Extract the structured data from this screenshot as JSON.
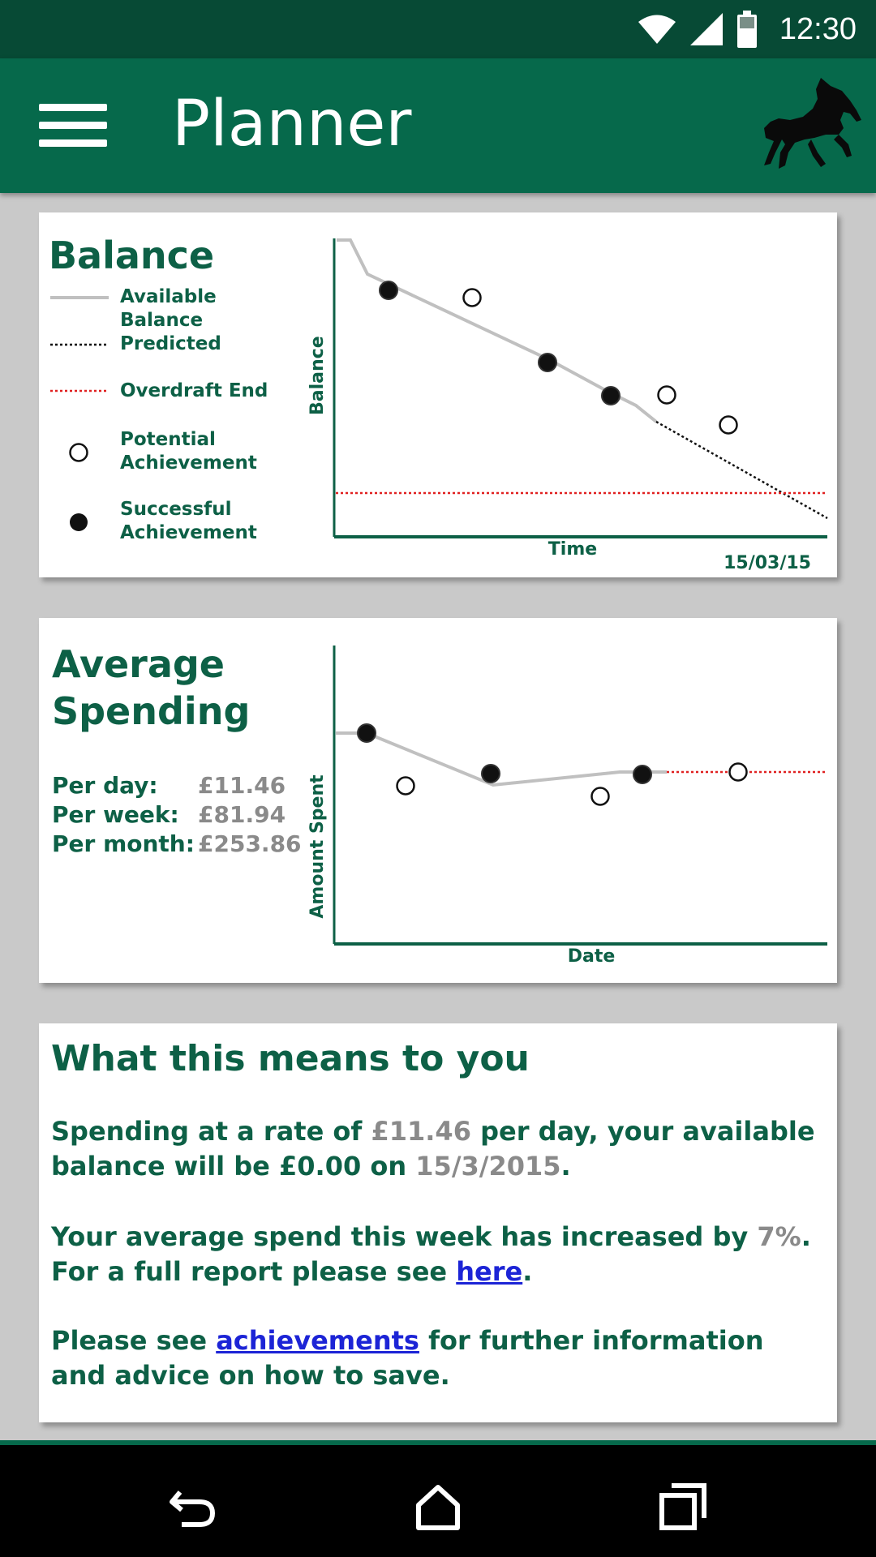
{
  "status_bar": {
    "time": "12:30",
    "icons": [
      "wifi-icon",
      "signal-icon",
      "battery-icon"
    ]
  },
  "app_bar": {
    "title": "Planner",
    "menu_icon": "hamburger-icon",
    "logo": "black-horse-logo"
  },
  "balance_card": {
    "title": "Balance",
    "legend": {
      "available": "Available Balance",
      "predicted": "Predicted",
      "overdraft": "Overdraft End",
      "potential": "Potential Achievement",
      "successful": "Successful Achievement"
    },
    "date": "15/03/15"
  },
  "spending_card": {
    "title_line1": "Average",
    "title_line2": "Spending",
    "stats": [
      {
        "label": "Per day:",
        "value": "£11.46"
      },
      {
        "label": "Per week:",
        "value": "£81.94"
      },
      {
        "label": "Per month:",
        "value": "£253.86"
      }
    ]
  },
  "info_card": {
    "title": "What this means to you",
    "p1_a": "Spending at a rate of ",
    "p1_rate": "£11.46",
    "p1_b": " per day, your available balance will be £0.00 on ",
    "p1_date": "15/3/2015",
    "p1_c": ".",
    "p2_a": "Your average spend this week has increased by ",
    "p2_pct": "7%",
    "p2_b": ".",
    "p2_c": "For a full report please see ",
    "p2_link": "here",
    "p2_d": ".",
    "p3_a": "Please see ",
    "p3_link": "achievements",
    "p3_b": " for further information and advice on how to save."
  },
  "colors": {
    "brand_dark": "#074a35",
    "brand": "#06694b",
    "text_green": "#0d6046",
    "link": "#1c24d6",
    "overdraft": "#e02020"
  },
  "chart_data": [
    {
      "type": "line",
      "xlabel": "Time",
      "ylabel": "Balance",
      "series": [
        {
          "name": "Available Balance",
          "style": "solid-grey"
        },
        {
          "name": "Predicted",
          "style": "dotted-black"
        },
        {
          "name": "Overdraft End",
          "style": "dotted-red"
        },
        {
          "name": "Potential Achievement",
          "marker": "open-circle"
        },
        {
          "name": "Successful Achievement",
          "marker": "filled-circle"
        }
      ],
      "x_end_label": "15/03/15"
    },
    {
      "type": "line",
      "xlabel": "Date",
      "ylabel": "Amount Spent",
      "series": [
        {
          "name": "Available Balance",
          "style": "solid-grey"
        },
        {
          "name": "Overdraft End",
          "style": "dotted-red"
        },
        {
          "name": "Potential Achievement",
          "marker": "open-circle"
        },
        {
          "name": "Successful Achievement",
          "marker": "filled-circle"
        }
      ]
    }
  ],
  "nav_bar": {
    "icons": [
      "back-icon",
      "home-icon",
      "recents-icon"
    ]
  }
}
